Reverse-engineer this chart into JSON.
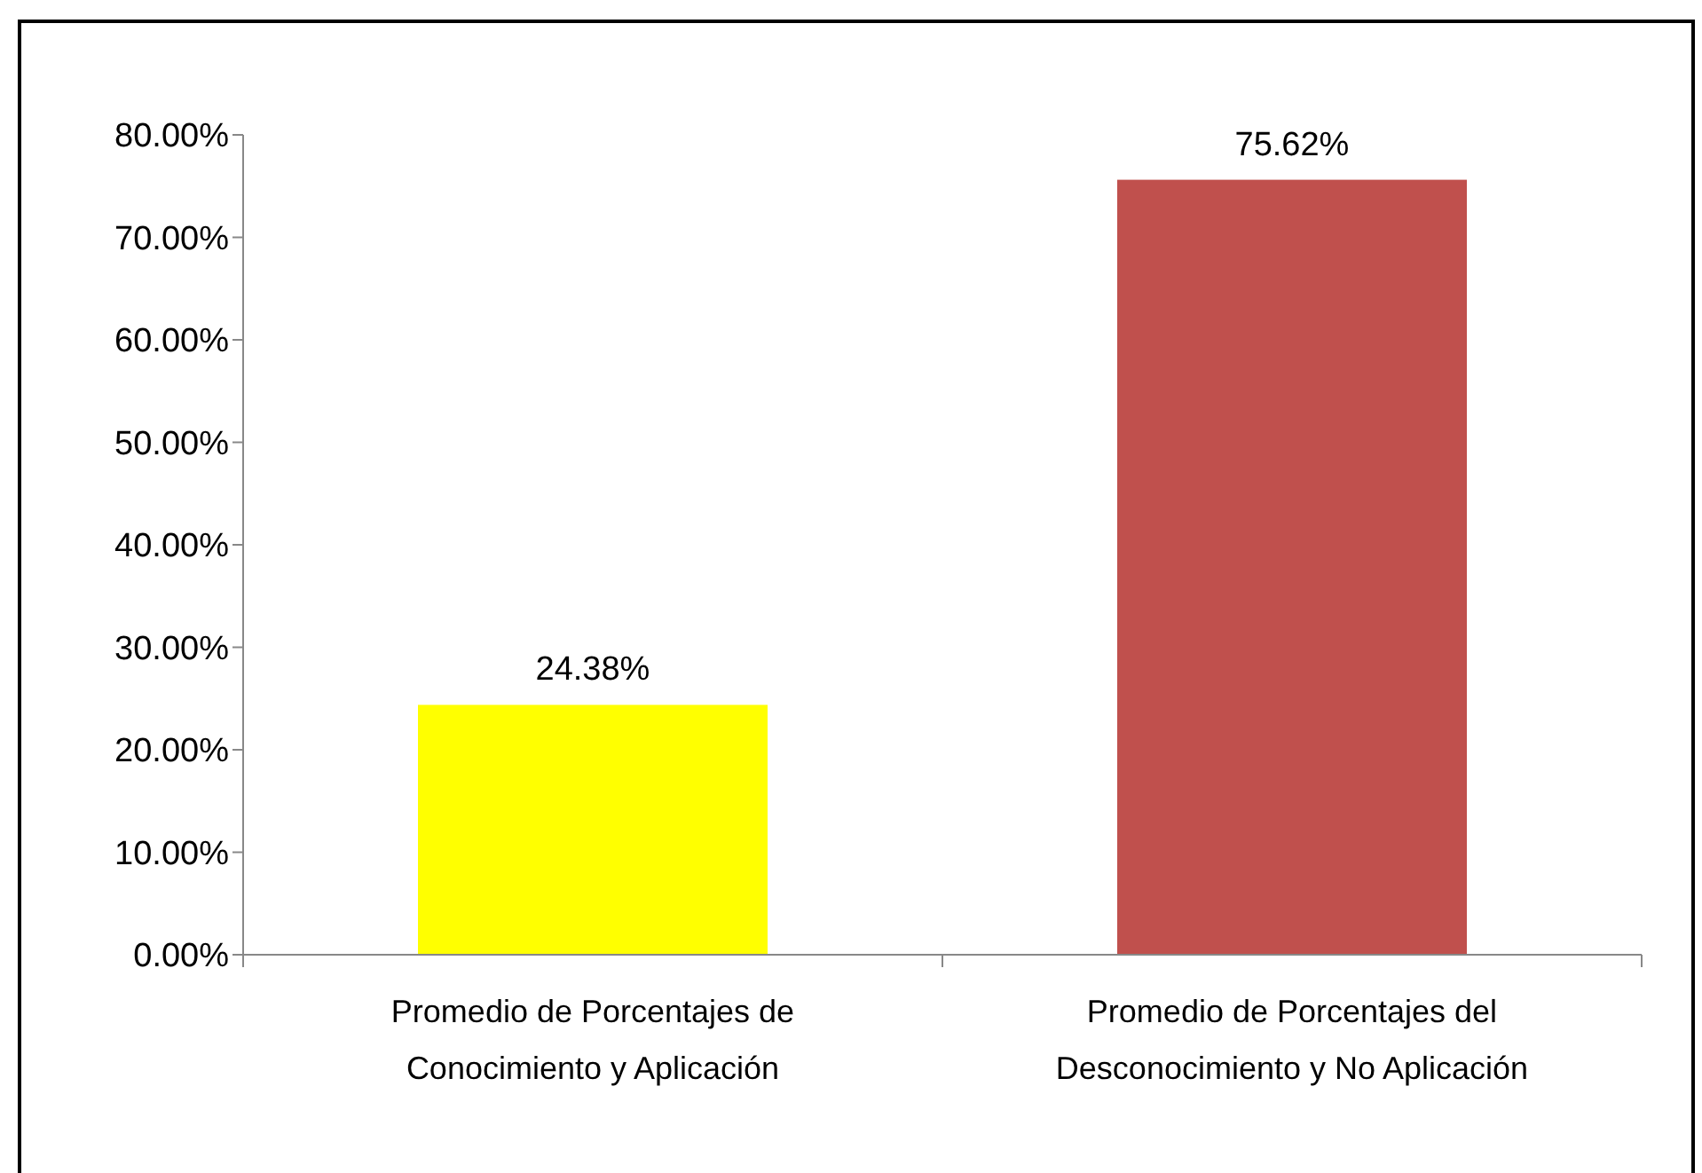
{
  "chart_data": {
    "type": "bar",
    "categories": [
      "Promedio de Porcentajes de Conocimiento y Aplicación",
      "Promedio de Porcentajes del Desconocimiento y No Aplicación"
    ],
    "values": [
      24.38,
      75.62
    ],
    "colors": [
      "#ffff00",
      "#c0504d"
    ],
    "value_labels": [
      "24.38%",
      "75.62%"
    ],
    "ylim": [
      0,
      80
    ],
    "yticks": [
      {
        "value": 0,
        "label": "0.00%"
      },
      {
        "value": 10,
        "label": "10.00%"
      },
      {
        "value": 20,
        "label": "20.00%"
      },
      {
        "value": 30,
        "label": "30.00%"
      },
      {
        "value": 40,
        "label": "40.00%"
      },
      {
        "value": 50,
        "label": "50.00%"
      },
      {
        "value": 60,
        "label": "60.00%"
      },
      {
        "value": 70,
        "label": "70.00%"
      },
      {
        "value": 80,
        "label": "80.00%"
      }
    ],
    "grid": false
  }
}
